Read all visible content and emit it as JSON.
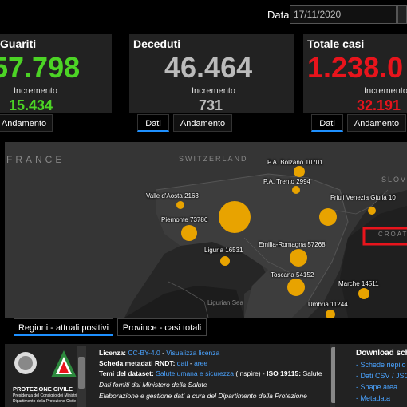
{
  "date": {
    "label": "Data",
    "value": "17/11/2020"
  },
  "panels": {
    "guariti": {
      "title": "Guariti",
      "value": "57.798",
      "inc_label": "Incremento",
      "inc_value": "15.434",
      "tab_andamento": "Andamento",
      "color": "#4cd425"
    },
    "deceduti": {
      "title": "Deceduti",
      "value": "46.464",
      "inc_label": "Incremento",
      "inc_value": "731",
      "tab_dati": "Dati",
      "tab_andamento": "Andamento",
      "color": "#bbbbbb"
    },
    "totale": {
      "title": "Totale casi",
      "value": "1.238.0",
      "inc_label": "Incremento",
      "inc_value": "32.191",
      "tab_dati": "Dati",
      "tab_andamento": "Andamento",
      "color": "#e8141c"
    }
  },
  "map": {
    "countries": [
      "FRANCE",
      "SWITZERLAND",
      "SLOVE",
      "CROATI"
    ],
    "sea": "Ligurian Sea",
    "regions": [
      {
        "label": "P.A. Bolzano 10701"
      },
      {
        "label": "P.A. Trento 2994"
      },
      {
        "label": "Friuli Venezia Giulia 10"
      },
      {
        "label": "Valle d'Aosta 2163"
      },
      {
        "label": "Piemonte 73786"
      },
      {
        "label": "Liguria 16531"
      },
      {
        "label": "Emilia-Romagna 57268"
      },
      {
        "label": "Toscana 54152"
      },
      {
        "label": "Marche 14511"
      },
      {
        "label": "Umbria 11244"
      }
    ]
  },
  "bottom_tabs": {
    "regioni": "Regioni - attuali positivi",
    "province": "Province - casi totali"
  },
  "footer": {
    "logo_text": "PROTEZIONE CIVILE",
    "logo_sub1": "Presidenza del Consiglio dei Ministri",
    "logo_sub2": "Dipartimento della Protezione Civile",
    "licenza_k": "Licenza:",
    "licenza_v": "CC-BY-4.0",
    "licenza_sep": " - ",
    "licenza_link": "Visualizza licenza",
    "scheda_k": "Scheda metadati RNDT:",
    "scheda_v1": "dati",
    "scheda_sep": " - ",
    "scheda_v2": "aree",
    "temi_k": "Temi del dataset:",
    "temi_v": "Salute umana e sicurezza",
    "temi_rest": " (Inspire) - ",
    "iso_k": "ISO 19115:",
    "iso_v": " Salute",
    "line4": "Dati forniti dal Ministero della Salute",
    "line5": "Elaborazione e gestione dati a cura del Dipartimento della Protezione"
  },
  "download": {
    "head": "Download sch",
    "items": [
      "- Schede riepilo",
      "- Dati CSV / JSO",
      "- Shape area",
      "- Metadata"
    ]
  },
  "colors": {
    "accent": "#1e90ff",
    "bubble": "#e8a300",
    "highlight": "#e8141c"
  }
}
